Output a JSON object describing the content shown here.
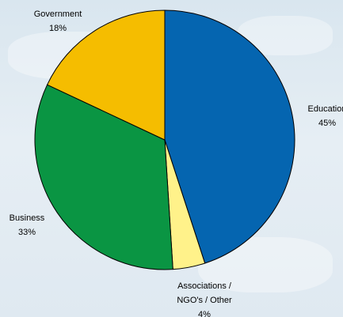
{
  "chart_data": {
    "type": "pie",
    "title": "",
    "slices": [
      {
        "label": "Education",
        "value_label": "45%",
        "value": 45,
        "color": "#0565b0"
      },
      {
        "label": "Associations / NGO's / Other",
        "label_lines": [
          "Associations /",
          "NGO's / Other"
        ],
        "value_label": "4%",
        "value": 4,
        "color": "#fff28a"
      },
      {
        "label": "Business",
        "value_label": "33%",
        "value": 33,
        "color": "#0a9543"
      },
      {
        "label": "Government",
        "value_label": "18%",
        "value": 18,
        "color": "#f5bd00"
      }
    ],
    "start_angle_deg": 0,
    "direction": "clockwise",
    "legend": "none"
  }
}
